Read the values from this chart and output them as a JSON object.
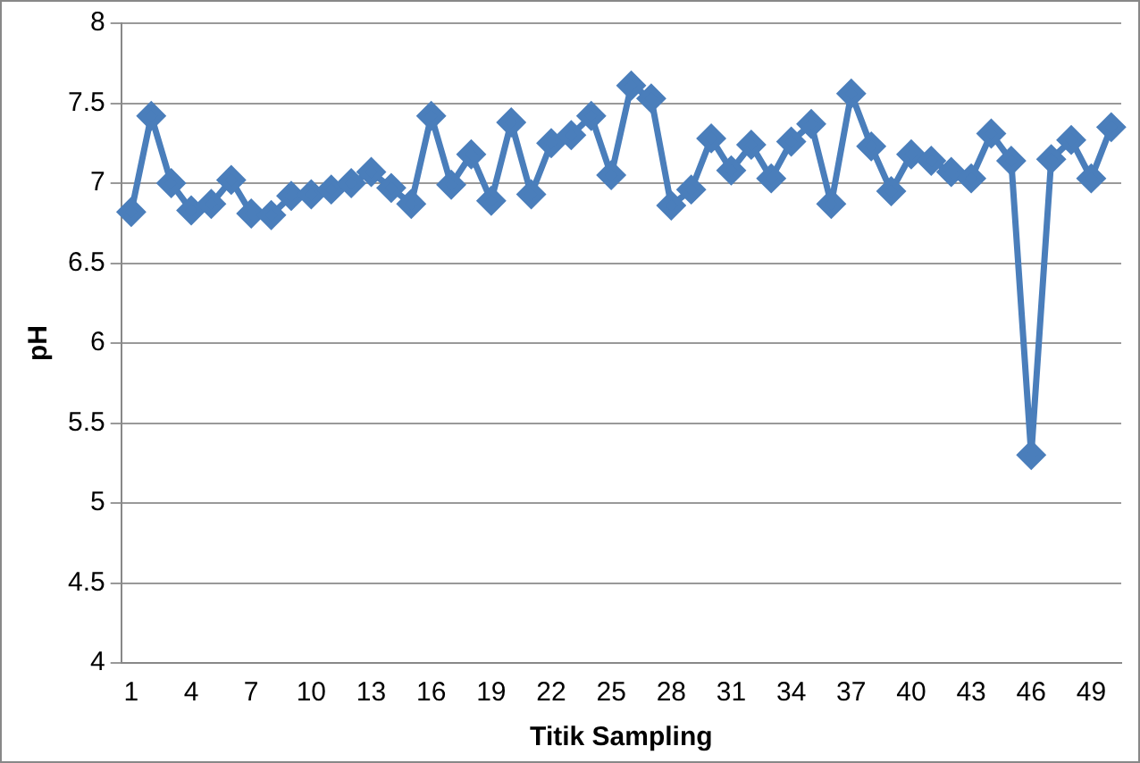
{
  "chart_data": {
    "type": "line",
    "xlabel": "Titik Sampling",
    "ylabel": "pH",
    "categories": [
      "1",
      null,
      null,
      "4",
      null,
      null,
      "7",
      null,
      null,
      "10",
      null,
      null,
      "13",
      null,
      null,
      "16",
      null,
      null,
      "19",
      null,
      null,
      "22",
      null,
      null,
      "25",
      null,
      null,
      "28",
      null,
      null,
      "31",
      null,
      null,
      "34",
      null,
      null,
      "37",
      null,
      null,
      "40",
      null,
      null,
      "43",
      null,
      null,
      "46",
      null,
      null,
      "49",
      null
    ],
    "series": [
      {
        "color": "#4a7ebb",
        "values": [
          6.82,
          7.42,
          7.0,
          6.83,
          6.87,
          7.02,
          6.81,
          6.8,
          6.92,
          6.93,
          6.96,
          7.0,
          7.07,
          6.97,
          6.87,
          7.42,
          6.99,
          7.18,
          6.89,
          7.38,
          6.93,
          7.25,
          7.3,
          7.42,
          7.05,
          7.61,
          7.53,
          6.86,
          6.96,
          7.28,
          7.08,
          7.24,
          7.03,
          7.26,
          7.37,
          6.87,
          7.56,
          7.23,
          6.95,
          7.18,
          7.14,
          7.07,
          7.03,
          7.31,
          7.14,
          5.3,
          7.15,
          7.27,
          7.03,
          7.35
        ]
      }
    ],
    "ylim": [
      4,
      8
    ],
    "yticks": [
      4,
      4.5,
      5,
      5.5,
      6,
      6.5,
      7,
      7.5,
      8
    ],
    "grid": "y",
    "legend": false,
    "marker": "diamond",
    "line_style": "solid"
  }
}
